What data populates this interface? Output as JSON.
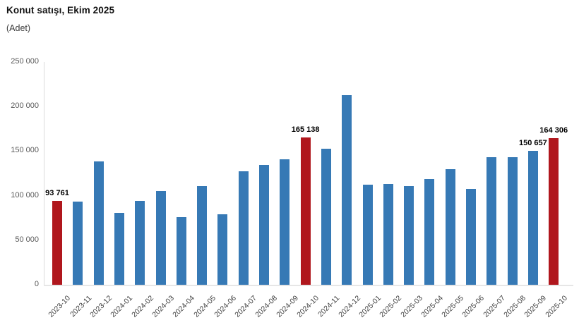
{
  "title": "Konut satışı, Ekim 2025",
  "subtitle": "(Adet)",
  "chart_data": {
    "type": "bar",
    "title": "Konut satışı, Ekim 2025",
    "unit": "Adet",
    "xlabel": "",
    "ylabel": "",
    "ylim": [
      0,
      250000
    ],
    "grid": "off",
    "legend": "none",
    "categories": [
      "2023-10",
      "2023-11",
      "2023-12",
      "2024-01",
      "2024-02",
      "2024-03",
      "2024-04",
      "2024-05",
      "2024-06",
      "2024-07",
      "2024-08",
      "2024-09",
      "2024-10",
      "2024-11",
      "2024-12",
      "2025-01",
      "2025-02",
      "2025-03",
      "2025-04",
      "2025-05",
      "2025-06",
      "2025-07",
      "2025-08",
      "2025-09",
      "2025-10"
    ],
    "values": [
      93761,
      93178,
      138577,
      80308,
      93902,
      105476,
      75569,
      110588,
      79313,
      127088,
      134155,
      140919,
      165138,
      153014,
      212637,
      112173,
      112818,
      110795,
      118359,
      130025,
      107723,
      142858,
      143319,
      150657,
      164306
    ],
    "bar_labels": [
      "93 761",
      null,
      null,
      null,
      null,
      null,
      null,
      null,
      null,
      null,
      null,
      null,
      "165 138",
      null,
      null,
      null,
      null,
      null,
      null,
      null,
      null,
      null,
      null,
      "150 657",
      "164 306"
    ],
    "highlighted_indices": [
      0,
      12,
      24
    ],
    "colors": {
      "bar": "#3679B5",
      "highlight": "#B0171D"
    },
    "y_ticks": [
      {
        "value": 0,
        "label": "0"
      },
      {
        "value": 50000,
        "label": "50 000"
      },
      {
        "value": 100000,
        "label": "100 000"
      },
      {
        "value": 150000,
        "label": "150 000"
      },
      {
        "value": 200000,
        "label": "200 000"
      },
      {
        "value": 250000,
        "label": "250 000"
      }
    ]
  }
}
